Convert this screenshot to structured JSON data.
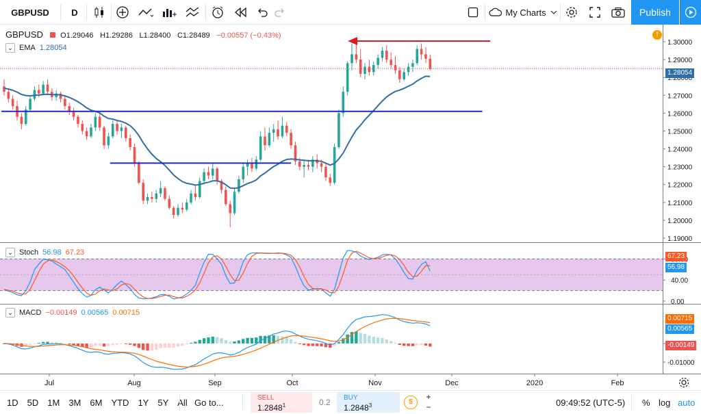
{
  "toolbar": {
    "symbol": "GBPUSD",
    "interval": "D",
    "my_charts": "My Charts",
    "publish": "Publish"
  },
  "legend": {
    "symbol": "GBPUSD",
    "open": "O1.29046",
    "high": "H1.29286",
    "low": "L1.28400",
    "close": "C1.28489",
    "change": "−0.00557 (−0.43%)",
    "ema_label": "EMA",
    "ema_value": "1.28054"
  },
  "stoch": {
    "label": "Stoch",
    "k": "56.98",
    "d": "67.23"
  },
  "macd": {
    "label": "MACD",
    "hist": "−0.00149",
    "macd": "0.00565",
    "signal": "0.00715"
  },
  "price_axis": {
    "ticks": [
      "1.30000",
      "1.29000",
      "1.28000",
      "1.27000",
      "1.26000",
      "1.25000",
      "1.24000",
      "1.23000",
      "1.22000",
      "1.21000",
      "1.20000",
      "1.19000"
    ],
    "ema_tag": "1.28054"
  },
  "stoch_axis": {
    "ticks": [
      "80.00",
      "40.00",
      "0.00"
    ],
    "k_tag": "56.98",
    "d_tag": "67.23"
  },
  "macd_axis": {
    "ticks": [
      "0.00000",
      "-0.01000"
    ],
    "signal_tag": "0.00715",
    "macd_tag": "0.00565",
    "hist_tag": "-0.00149"
  },
  "time_axis": [
    "Jul",
    "Aug",
    "Sep",
    "Oct",
    "Nov",
    "Dec",
    "2020",
    "Feb"
  ],
  "bottombar": {
    "ranges": [
      "1D",
      "5D",
      "1M",
      "3M",
      "6M",
      "YTD",
      "1Y",
      "5Y",
      "All"
    ],
    "goto": "Go to...",
    "sell_label": "SELL",
    "sell_price": "1.2848",
    "sell_sup": "1",
    "spread": "0.2",
    "buy_label": "BUY",
    "buy_price": "1.2848",
    "buy_sup": "3",
    "clock": "09:49:52 (UTC-5)",
    "percent": "%",
    "log": "log",
    "auto": "auto"
  },
  "chart_data": {
    "type": "candlestick",
    "symbol": "GBPUSD",
    "interval": "D",
    "x_labels": [
      "Jul",
      "Aug",
      "Sep",
      "Oct",
      "Nov",
      "Dec",
      "2020",
      "Feb"
    ],
    "ylim": [
      1.19,
      1.305
    ],
    "candles": [
      [
        1.275,
        1.279,
        1.27,
        1.272
      ],
      [
        1.272,
        1.274,
        1.266,
        1.268
      ],
      [
        1.268,
        1.27,
        1.262,
        1.264
      ],
      [
        1.264,
        1.267,
        1.256,
        1.258
      ],
      [
        1.258,
        1.26,
        1.251,
        1.254
      ],
      [
        1.254,
        1.264,
        1.253,
        1.262
      ],
      [
        1.262,
        1.27,
        1.261,
        1.268
      ],
      [
        1.268,
        1.275,
        1.267,
        1.273
      ],
      [
        1.273,
        1.276,
        1.269,
        1.271
      ],
      [
        1.271,
        1.278,
        1.27,
        1.276
      ],
      [
        1.276,
        1.279,
        1.27,
        1.272
      ],
      [
        1.272,
        1.274,
        1.267,
        1.269
      ],
      [
        1.269,
        1.273,
        1.267,
        1.271
      ],
      [
        1.271,
        1.272,
        1.266,
        1.268
      ],
      [
        1.268,
        1.27,
        1.262,
        1.264
      ],
      [
        1.264,
        1.266,
        1.259,
        1.261
      ],
      [
        1.261,
        1.263,
        1.256,
        1.258
      ],
      [
        1.258,
        1.259,
        1.252,
        1.254
      ],
      [
        1.254,
        1.256,
        1.248,
        1.25
      ],
      [
        1.25,
        1.252,
        1.245,
        1.247
      ],
      [
        1.247,
        1.254,
        1.246,
        1.252
      ],
      [
        1.252,
        1.26,
        1.25,
        1.258
      ],
      [
        1.258,
        1.26,
        1.25,
        1.252
      ],
      [
        1.252,
        1.253,
        1.24,
        1.242
      ],
      [
        1.242,
        1.249,
        1.24,
        1.247
      ],
      [
        1.247,
        1.256,
        1.246,
        1.254
      ],
      [
        1.254,
        1.256,
        1.248,
        1.25
      ],
      [
        1.25,
        1.254,
        1.246,
        1.252
      ],
      [
        1.252,
        1.253,
        1.244,
        1.246
      ],
      [
        1.246,
        1.248,
        1.239,
        1.241
      ],
      [
        1.241,
        1.243,
        1.23,
        1.232
      ],
      [
        1.232,
        1.233,
        1.22,
        1.221
      ],
      [
        1.221,
        1.223,
        1.209,
        1.211
      ],
      [
        1.211,
        1.215,
        1.209,
        1.213
      ],
      [
        1.213,
        1.216,
        1.21,
        1.212
      ],
      [
        1.212,
        1.217,
        1.21,
        1.215
      ],
      [
        1.215,
        1.222,
        1.213,
        1.218
      ],
      [
        1.218,
        1.219,
        1.211,
        1.212
      ],
      [
        1.212,
        1.214,
        1.206,
        1.207
      ],
      [
        1.207,
        1.208,
        1.201,
        1.203
      ],
      [
        1.203,
        1.209,
        1.202,
        1.207
      ],
      [
        1.207,
        1.21,
        1.204,
        1.206
      ],
      [
        1.206,
        1.212,
        1.205,
        1.21
      ],
      [
        1.21,
        1.217,
        1.209,
        1.215
      ],
      [
        1.215,
        1.22,
        1.211,
        1.213
      ],
      [
        1.213,
        1.224,
        1.212,
        1.222
      ],
      [
        1.222,
        1.229,
        1.22,
        1.227
      ],
      [
        1.227,
        1.23,
        1.223,
        1.225
      ],
      [
        1.225,
        1.232,
        1.223,
        1.229
      ],
      [
        1.229,
        1.23,
        1.22,
        1.222
      ],
      [
        1.222,
        1.223,
        1.215,
        1.217
      ],
      [
        1.217,
        1.219,
        1.208,
        1.209
      ],
      [
        1.209,
        1.211,
        1.196,
        1.204
      ],
      [
        1.204,
        1.218,
        1.203,
        1.216
      ],
      [
        1.216,
        1.225,
        1.215,
        1.223
      ],
      [
        1.223,
        1.232,
        1.221,
        1.23
      ],
      [
        1.23,
        1.234,
        1.225,
        1.232
      ],
      [
        1.232,
        1.235,
        1.227,
        1.229
      ],
      [
        1.229,
        1.236,
        1.228,
        1.234
      ],
      [
        1.234,
        1.25,
        1.233,
        1.247
      ],
      [
        1.247,
        1.252,
        1.239,
        1.242
      ],
      [
        1.242,
        1.252,
        1.241,
        1.249
      ],
      [
        1.249,
        1.254,
        1.244,
        1.251
      ],
      [
        1.251,
        1.256,
        1.245,
        1.247
      ],
      [
        1.247,
        1.258,
        1.246,
        1.253
      ],
      [
        1.253,
        1.255,
        1.247,
        1.249
      ],
      [
        1.249,
        1.251,
        1.24,
        1.242
      ],
      [
        1.242,
        1.244,
        1.231,
        1.233
      ],
      [
        1.233,
        1.235,
        1.228,
        1.23
      ],
      [
        1.23,
        1.234,
        1.224,
        1.231
      ],
      [
        1.231,
        1.234,
        1.228,
        1.23
      ],
      [
        1.23,
        1.236,
        1.227,
        1.234
      ],
      [
        1.234,
        1.237,
        1.229,
        1.232
      ],
      [
        1.232,
        1.234,
        1.227,
        1.23
      ],
      [
        1.23,
        1.232,
        1.222,
        1.224
      ],
      [
        1.224,
        1.226,
        1.219,
        1.221
      ],
      [
        1.221,
        1.243,
        1.22,
        1.241
      ],
      [
        1.241,
        1.262,
        1.24,
        1.26
      ],
      [
        1.26,
        1.275,
        1.258,
        1.272
      ],
      [
        1.272,
        1.289,
        1.27,
        1.288
      ],
      [
        1.288,
        1.299,
        1.284,
        1.293
      ],
      [
        1.293,
        1.301,
        1.288,
        1.29
      ],
      [
        1.29,
        1.296,
        1.28,
        1.282
      ],
      [
        1.282,
        1.288,
        1.279,
        1.286
      ],
      [
        1.286,
        1.29,
        1.281,
        1.283
      ],
      [
        1.283,
        1.289,
        1.281,
        1.287
      ],
      [
        1.287,
        1.293,
        1.285,
        1.291
      ],
      [
        1.291,
        1.297,
        1.289,
        1.295
      ],
      [
        1.295,
        1.298,
        1.288,
        1.29
      ],
      [
        1.29,
        1.294,
        1.285,
        1.287
      ],
      [
        1.287,
        1.292,
        1.282,
        1.284
      ],
      [
        1.284,
        1.286,
        1.277,
        1.279
      ],
      [
        1.279,
        1.285,
        1.278,
        1.283
      ],
      [
        1.283,
        1.288,
        1.281,
        1.286
      ],
      [
        1.286,
        1.29,
        1.283,
        1.288
      ],
      [
        1.288,
        1.298,
        1.287,
        1.296
      ],
      [
        1.296,
        1.299,
        1.29,
        1.293
      ],
      [
        1.293,
        1.297,
        1.288,
        1.2905
      ],
      [
        1.29046,
        1.29286,
        1.284,
        1.28489
      ]
    ],
    "ema": [
      1.274,
      1.2735,
      1.2728,
      1.2718,
      1.2705,
      1.2699,
      1.2697,
      1.27,
      1.2701,
      1.2705,
      1.2706,
      1.2704,
      1.2704,
      1.2702,
      1.2697,
      1.2688,
      1.2677,
      1.2664,
      1.2648,
      1.263,
      1.2617,
      1.261,
      1.2601,
      1.2583,
      1.257,
      1.2567,
      1.2559,
      1.2554,
      1.2544,
      1.253,
      1.2507,
      1.2475,
      1.2434,
      1.24,
      1.237,
      1.2346,
      1.2328,
      1.2307,
      1.2281,
      1.2254,
      1.2234,
      1.2217,
      1.2207,
      1.2203,
      1.2197,
      1.22,
      1.2208,
      1.2213,
      1.2221,
      1.2221,
      1.2214,
      1.2199,
      1.2181,
      1.2179,
      1.2183,
      1.2194,
      1.2206,
      1.2214,
      1.2226,
      1.2249,
      1.2264,
      1.2283,
      1.2301,
      1.2314,
      1.233,
      1.2341,
      1.2343,
      1.2342,
      1.2338,
      1.2336,
      1.2333,
      1.2334,
      1.2333,
      1.233,
      1.232,
      1.2309,
      1.2318,
      1.2344,
      1.2377,
      1.2422,
      1.2467,
      1.2506,
      1.2533,
      1.2563,
      1.2589,
      1.2615,
      1.2642,
      1.2668,
      1.2691,
      1.2708,
      1.2722,
      1.2729,
      1.2739,
      1.2751,
      1.2763,
      1.2781,
      1.2795,
      1.2807,
      1.28054
    ],
    "hlines": [
      {
        "y": 1.261,
        "from_index": 0,
        "to_index": 110
      },
      {
        "y": 1.232,
        "from_index": 25,
        "to_index": 66
      }
    ],
    "stochastic": {
      "k_last": 56.98,
      "d_last": 67.23,
      "levels": [
        80,
        20
      ]
    },
    "macd": {
      "hist_last": -0.00149,
      "macd_last": 0.00565,
      "signal_last": 0.00715
    },
    "colors": {
      "up": "#26a69a",
      "down": "#ef5350",
      "ema": "#2e6ea6",
      "stoch_k": "#2196f3",
      "stoch_d": "#ff5722",
      "band": "#e1bee7"
    }
  }
}
